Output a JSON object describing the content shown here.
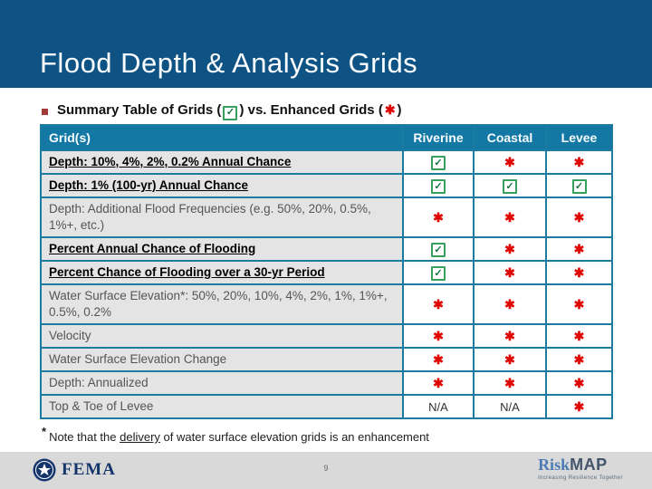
{
  "slide": {
    "title": "Flood Depth & Analysis Grids"
  },
  "bullet": {
    "text_before_check": "Summary Table of Grids (",
    "text_between": ") vs. Enhanced Grids (",
    "text_after": ")"
  },
  "icons": {
    "check_glyph": "✓",
    "asterisk_glyph": "✱"
  },
  "table": {
    "headers": [
      "Grid(s)",
      "Riverine",
      "Coastal",
      "Levee"
    ],
    "na_text": "N/A",
    "rows": [
      {
        "label": "Depth: 10%, 4%, 2%, 0.2% Annual Chance",
        "emphasized": true,
        "cells": [
          "check",
          "ast",
          "ast"
        ]
      },
      {
        "label": "Depth: 1% (100-yr) Annual Chance",
        "emphasized": true,
        "cells": [
          "check",
          "check",
          "check"
        ]
      },
      {
        "label": "Depth: Additional Flood Frequencies (e.g. 50%, 20%, 0.5%, 1%+, etc.)",
        "emphasized": false,
        "cells": [
          "ast",
          "ast",
          "ast"
        ]
      },
      {
        "label": "Percent Annual Chance of Flooding",
        "emphasized": true,
        "cells": [
          "check",
          "ast",
          "ast"
        ]
      },
      {
        "label": "Percent Chance of Flooding over a 30-yr Period",
        "emphasized": true,
        "cells": [
          "check",
          "ast",
          "ast"
        ]
      },
      {
        "label": "Water Surface Elevation*: 50%, 20%, 10%, 4%, 2%, 1%, 1%+, 0.5%, 0.2%",
        "emphasized": false,
        "cells": [
          "ast",
          "ast",
          "ast"
        ]
      },
      {
        "label": "Velocity",
        "emphasized": false,
        "cells": [
          "ast",
          "ast",
          "ast"
        ]
      },
      {
        "label": "Water Surface Elevation Change",
        "emphasized": false,
        "cells": [
          "ast",
          "ast",
          "ast"
        ]
      },
      {
        "label": "Depth: Annualized",
        "emphasized": false,
        "cells": [
          "ast",
          "ast",
          "ast"
        ]
      },
      {
        "label": "Top & Toe of Levee",
        "emphasized": false,
        "cells": [
          "na",
          "na",
          "ast"
        ]
      }
    ]
  },
  "footnote": {
    "asterisk": "*",
    "before": "Note that the ",
    "underlined": "delivery",
    "after": " of water surface elevation grids is an enhancement"
  },
  "footer": {
    "page_number": "9",
    "fema": "FEMA",
    "riskmap_risk": "Risk",
    "riskmap_map": "MAP",
    "riskmap_tagline": "Increasing Resilience Together"
  },
  "colors": {
    "title_band_blue": "#0e5384",
    "table_header_blue": "#1478a4",
    "table_border_teal": "#1d7ba1",
    "label_cell_gray": "#e4e4e4",
    "check_green": "#36a15c",
    "asterisk_red": "#e00505",
    "bullet_red": "#a23a38",
    "footer_gray": "#d9d9d9",
    "fema_navy": "#14356b",
    "riskmap_blue": "#4d7cb5",
    "riskmap_dark": "#44546a"
  }
}
